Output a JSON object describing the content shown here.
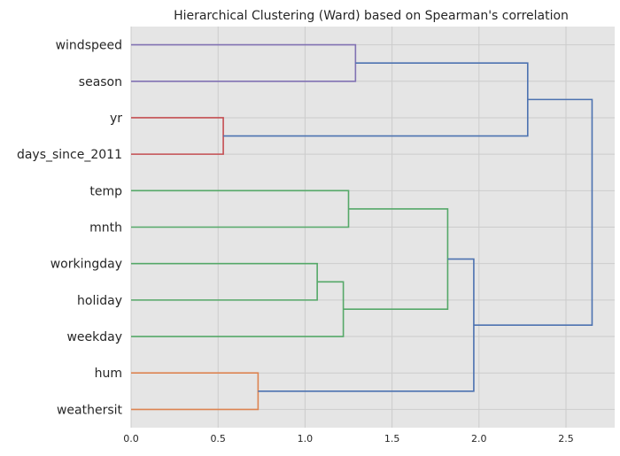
{
  "chart_data": {
    "type": "dendrogram",
    "title": "Hierarchical Clustering (Ward) based on Spearman's correlation",
    "orientation": "horizontal",
    "xlim": [
      0,
      2.78
    ],
    "xticks": [
      0.0,
      0.5,
      1.0,
      1.5,
      2.0,
      2.5
    ],
    "xtick_labels": [
      "0.0",
      "0.5",
      "1.0",
      "1.5",
      "2.0",
      "2.5"
    ],
    "grid": true,
    "leaves": [
      "windspeed",
      "season",
      "yr",
      "days_since_2011",
      "temp",
      "mnth",
      "workingday",
      "holiday",
      "weekday",
      "hum",
      "weathersit"
    ],
    "colors": {
      "purple": "#8172b3",
      "red": "#c44e52",
      "green": "#55a868",
      "orange": "#dd8452",
      "blue": "#4c72b0"
    },
    "merges": [
      {
        "id": "m1",
        "a": "windspeed",
        "b": "season",
        "distance": 1.29,
        "color": "purple"
      },
      {
        "id": "m2",
        "a": "yr",
        "b": "days_since_2011",
        "distance": 0.53,
        "color": "red"
      },
      {
        "id": "m3",
        "a": "m1",
        "b": "m2",
        "distance": 2.28,
        "color": "blue"
      },
      {
        "id": "m4",
        "a": "temp",
        "b": "mnth",
        "distance": 1.25,
        "color": "green"
      },
      {
        "id": "m5",
        "a": "workingday",
        "b": "holiday",
        "distance": 1.07,
        "color": "green"
      },
      {
        "id": "m6",
        "a": "m5",
        "b": "weekday",
        "distance": 1.22,
        "color": "green"
      },
      {
        "id": "m7",
        "a": "m4",
        "b": "m6",
        "distance": 1.82,
        "color": "green"
      },
      {
        "id": "m8",
        "a": "hum",
        "b": "weathersit",
        "distance": 0.73,
        "color": "orange"
      },
      {
        "id": "m9",
        "a": "m7",
        "b": "m8",
        "distance": 1.97,
        "color": "blue"
      },
      {
        "id": "m10",
        "a": "m3",
        "b": "m9",
        "distance": 2.65,
        "color": "blue"
      }
    ]
  }
}
